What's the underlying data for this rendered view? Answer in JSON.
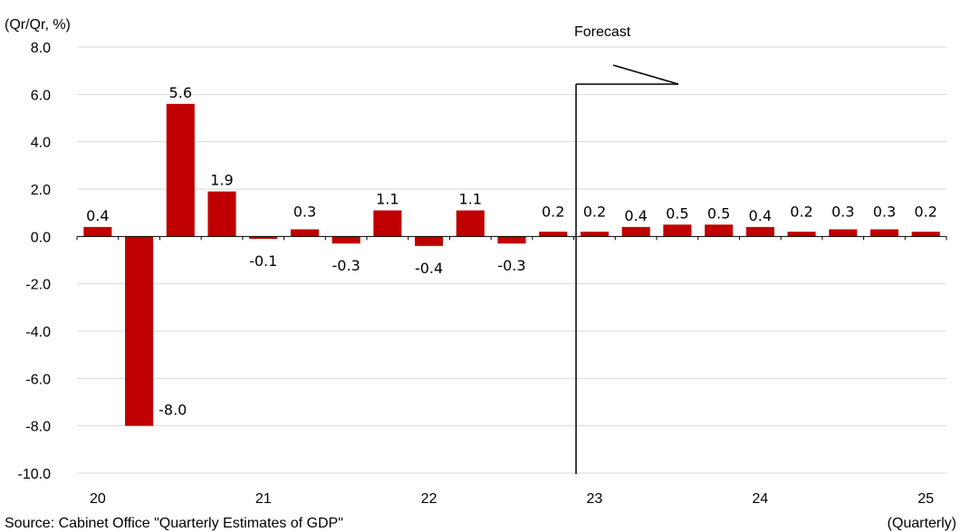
{
  "chart_data": {
    "type": "bar",
    "ylabel": "(Qr/Qr, %)",
    "xlabel": "(Quarterly)",
    "source": "Source: Cabinet Office \"Quarterly Estimates of GDP\"",
    "forecast_label": "Forecast",
    "ylim": [
      -10,
      8
    ],
    "y_ticks": [
      "8.0",
      "6.0",
      "4.0",
      "2.0",
      "0.0",
      "-2.0",
      "-4.0",
      "-6.0",
      "-8.0",
      "-10.0"
    ],
    "x_tick_labels": [
      "20",
      "21",
      "22",
      "23",
      "24",
      "25"
    ],
    "categories": [
      "20Q1",
      "20Q2",
      "20Q3",
      "20Q4",
      "21Q1",
      "21Q2",
      "21Q3",
      "21Q4",
      "22Q1",
      "22Q2",
      "22Q3",
      "22Q4",
      "23Q1",
      "23Q2",
      "23Q3",
      "23Q4",
      "24Q1",
      "24Q2",
      "24Q3",
      "24Q4",
      "25Q1"
    ],
    "values": [
      0.4,
      -8.0,
      5.6,
      1.9,
      -0.1,
      0.3,
      -0.3,
      1.1,
      -0.4,
      1.1,
      -0.3,
      0.2,
      0.2,
      0.4,
      0.5,
      0.5,
      0.4,
      0.2,
      0.3,
      0.3,
      0.2
    ],
    "value_labels": [
      "0.4",
      "-8.0",
      "5.6",
      "1.9",
      "-0.1",
      "0.3",
      "-0.3",
      "1.1",
      "-0.4",
      "1.1",
      "-0.3",
      "0.2",
      "0.2",
      "0.4",
      "0.5",
      "0.5",
      "0.4",
      "0.2",
      "0.3",
      "0.3",
      "0.2"
    ],
    "forecast_start_index": 12,
    "bar_color": "#C00000",
    "grid": true
  }
}
